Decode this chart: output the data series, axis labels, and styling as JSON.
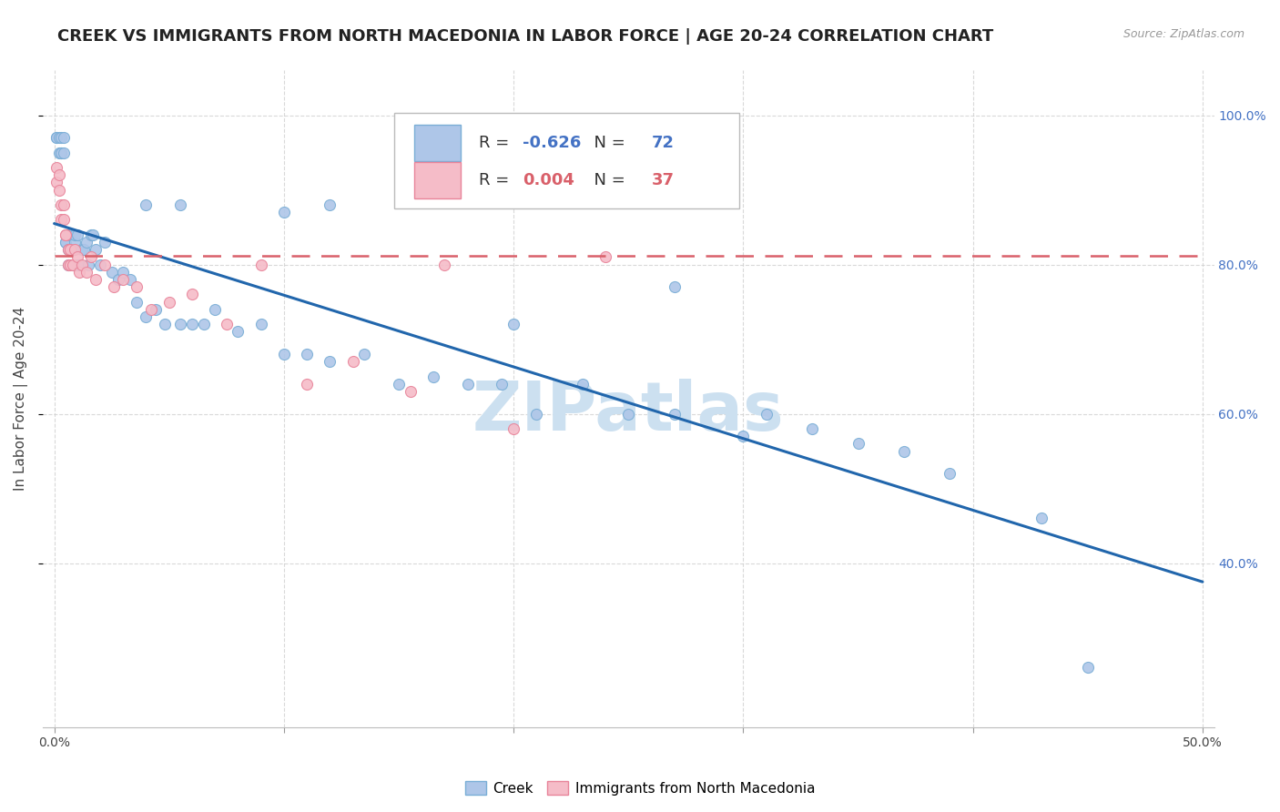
{
  "title": "CREEK VS IMMIGRANTS FROM NORTH MACEDONIA IN LABOR FORCE | AGE 20-24 CORRELATION CHART",
  "source": "Source: ZipAtlas.com",
  "ylabel": "In Labor Force | Age 20-24",
  "xlim": [
    -0.005,
    0.505
  ],
  "ylim": [
    0.18,
    1.06
  ],
  "xticks": [
    0.0,
    0.1,
    0.2,
    0.3,
    0.4,
    0.5
  ],
  "xticklabels": [
    "0.0%",
    "",
    "",
    "",
    "",
    "50.0%"
  ],
  "yticks_right": [
    0.4,
    0.6,
    0.8,
    1.0
  ],
  "ytick_right_labels": [
    "40.0%",
    "60.0%",
    "80.0%",
    "100.0%"
  ],
  "creek_color": "#aec6e8",
  "creek_edge_color": "#7aaed6",
  "immig_color": "#f5bcc8",
  "immig_edge_color": "#e8849a",
  "trend_creek_color": "#2166ac",
  "trend_immig_color": "#d9606a",
  "legend_r_creek": "-0.626",
  "legend_n_creek": "72",
  "legend_r_immig": "0.004",
  "legend_n_immig": "37",
  "grid_color": "#d0d0d0",
  "background_color": "#ffffff",
  "title_fontsize": 13,
  "axis_label_fontsize": 11,
  "tick_fontsize": 10,
  "legend_fontsize": 13,
  "creek_x": [
    0.001,
    0.001,
    0.002,
    0.002,
    0.003,
    0.003,
    0.003,
    0.004,
    0.004,
    0.005,
    0.005,
    0.006,
    0.006,
    0.006,
    0.007,
    0.007,
    0.008,
    0.008,
    0.009,
    0.009,
    0.01,
    0.01,
    0.011,
    0.012,
    0.013,
    0.014,
    0.015,
    0.016,
    0.017,
    0.018,
    0.02,
    0.022,
    0.025,
    0.028,
    0.03,
    0.033,
    0.036,
    0.04,
    0.044,
    0.048,
    0.055,
    0.06,
    0.065,
    0.07,
    0.08,
    0.09,
    0.1,
    0.11,
    0.12,
    0.135,
    0.15,
    0.165,
    0.18,
    0.195,
    0.21,
    0.23,
    0.25,
    0.27,
    0.3,
    0.31,
    0.33,
    0.35,
    0.37,
    0.39,
    0.27,
    0.04,
    0.055,
    0.1,
    0.12,
    0.2,
    0.43,
    0.45
  ],
  "creek_y": [
    0.97,
    0.97,
    0.95,
    0.97,
    0.95,
    0.97,
    0.95,
    0.95,
    0.97,
    0.83,
    0.83,
    0.82,
    0.84,
    0.8,
    0.82,
    0.82,
    0.8,
    0.82,
    0.83,
    0.84,
    0.84,
    0.8,
    0.8,
    0.82,
    0.82,
    0.83,
    0.8,
    0.84,
    0.84,
    0.82,
    0.8,
    0.83,
    0.79,
    0.78,
    0.79,
    0.78,
    0.75,
    0.73,
    0.74,
    0.72,
    0.72,
    0.72,
    0.72,
    0.74,
    0.71,
    0.72,
    0.68,
    0.68,
    0.67,
    0.68,
    0.64,
    0.65,
    0.64,
    0.64,
    0.6,
    0.64,
    0.6,
    0.6,
    0.57,
    0.6,
    0.58,
    0.56,
    0.55,
    0.52,
    0.77,
    0.88,
    0.88,
    0.87,
    0.88,
    0.72,
    0.46,
    0.26
  ],
  "immig_x": [
    0.001,
    0.001,
    0.002,
    0.002,
    0.003,
    0.003,
    0.004,
    0.004,
    0.005,
    0.005,
    0.006,
    0.006,
    0.007,
    0.007,
    0.008,
    0.009,
    0.01,
    0.011,
    0.012,
    0.014,
    0.016,
    0.018,
    0.022,
    0.026,
    0.03,
    0.036,
    0.042,
    0.05,
    0.06,
    0.075,
    0.09,
    0.11,
    0.13,
    0.155,
    0.2,
    0.24,
    0.17
  ],
  "immig_y": [
    0.93,
    0.91,
    0.92,
    0.9,
    0.88,
    0.86,
    0.88,
    0.86,
    0.84,
    0.84,
    0.8,
    0.82,
    0.8,
    0.82,
    0.8,
    0.82,
    0.81,
    0.79,
    0.8,
    0.79,
    0.81,
    0.78,
    0.8,
    0.77,
    0.78,
    0.77,
    0.74,
    0.75,
    0.76,
    0.72,
    0.8,
    0.64,
    0.67,
    0.63,
    0.58,
    0.81,
    0.8
  ],
  "creek_trend_x": [
    0.0,
    0.5
  ],
  "creek_trend_y": [
    0.855,
    0.375
  ],
  "immig_trend_x": [
    0.0,
    0.5
  ],
  "immig_trend_y": [
    0.812,
    0.812
  ],
  "watermark": "ZIPatlas",
  "watermark_color": "#cce0f0",
  "marker_size": 75
}
